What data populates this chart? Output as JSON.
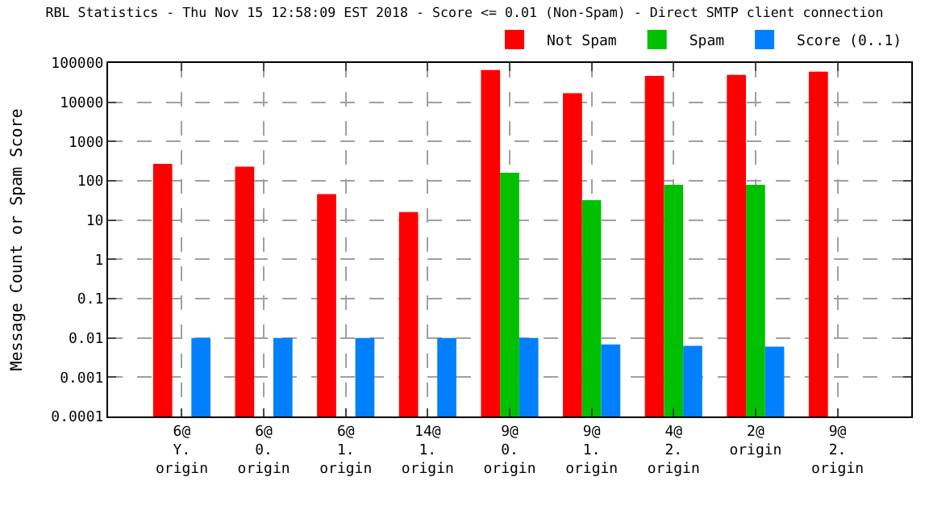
{
  "chart_data": {
    "type": "bar",
    "title": "RBL Statistics - Thu Nov 15 12:58:09 EST 2018 - Score <= 0.01 (Non-Spam) - Direct SMTP client connection",
    "ylabel": "Message Count or Spam Score",
    "categories": [
      "6@\nY.\norigin",
      "6@\n0.\norigin",
      "6@\n1.\norigin",
      "14@\n1.\norigin",
      "9@\n0.\norigin",
      "9@\n1.\norigin",
      "4@\n2.\norigin",
      "2@\norigin",
      "9@\n2.\norigin"
    ],
    "series": [
      {
        "name": "Not Spam",
        "color": "#ff0000",
        "values": [
          270,
          230,
          46,
          16,
          66000,
          17000,
          47000,
          50000,
          60000
        ]
      },
      {
        "name": "Spam",
        "color": "#00c000",
        "values": [
          null,
          null,
          null,
          null,
          160,
          32,
          79,
          79,
          null
        ]
      },
      {
        "name": "Score (0..1)",
        "color": "#0080ff",
        "values": [
          0.01,
          0.01,
          0.01,
          0.01,
          0.01,
          0.0068,
          0.0063,
          0.006,
          null
        ]
      }
    ],
    "log": "y",
    "ylim": [
      0.0001,
      100000
    ],
    "yticks": [
      0.0001,
      0.001,
      0.01,
      0.1,
      1,
      10,
      100,
      1000,
      10000,
      100000
    ],
    "grid": true,
    "legend": "top right"
  }
}
